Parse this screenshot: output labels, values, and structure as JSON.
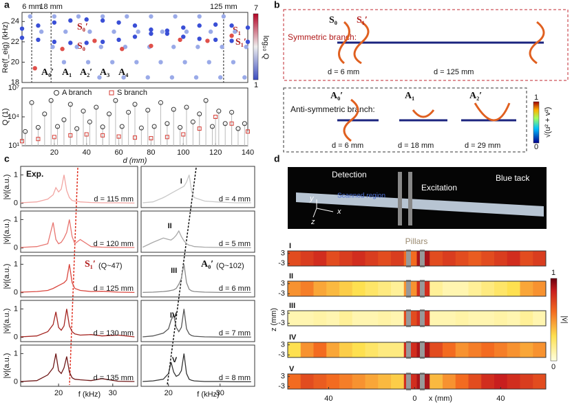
{
  "panel_labels": [
    "a",
    "b",
    "c",
    "d"
  ],
  "chart_data": [
    {
      "type": "scatter",
      "ylabel": "Re(f_eig) (kHz)",
      "xlim": [
        0,
        140
      ],
      "ylim": [
        18,
        24.9
      ],
      "yticks": [
        18,
        20,
        22,
        24
      ],
      "vlines": [
        {
          "value": 6,
          "label": "6 mm"
        },
        {
          "value": 18,
          "label": "18 mm"
        },
        {
          "value": 125,
          "label": "125 mm"
        }
      ],
      "colorbar": {
        "label": "log₁₀ Q",
        "ticks": [
          "1",
          "7"
        ]
      },
      "mode_labels": [
        "S₀′",
        "S₀",
        "S₁",
        "S₁′",
        "A₀′",
        "A₁",
        "A₂′",
        "A₃",
        "A₄"
      ],
      "series": [
        {
          "color": "#9aaae8",
          "x": [
            5,
            12,
            19,
            26,
            20,
            27,
            34,
            41,
            48,
            35,
            42,
            49,
            56,
            63,
            50,
            57,
            64,
            71,
            78,
            65,
            72,
            79,
            86,
            93,
            80,
            87,
            94,
            101,
            108,
            95,
            102,
            109,
            116,
            123,
            110,
            117,
            124,
            131,
            138,
            125,
            132,
            139
          ],
          "values": [
            24.5,
            23,
            21.5,
            20,
            24.5,
            23,
            21.5,
            20,
            18.5,
            24.5,
            23,
            21.5,
            20,
            18.5,
            24.5,
            23,
            21.5,
            20,
            18.5,
            24.5,
            23,
            21.5,
            20,
            18.5,
            24.5,
            23,
            21.5,
            20,
            18.5,
            24.5,
            23,
            21.5,
            20,
            18.5,
            24.5,
            23,
            21.5,
            20,
            18.5,
            24.5,
            23,
            21.5
          ]
        },
        {
          "color": "#3a4fd6",
          "x": [
            0,
            10,
            20,
            30,
            40,
            50,
            60,
            70,
            80,
            90,
            100,
            110,
            120,
            130,
            140
          ],
          "values": [
            23.3,
            23.6,
            23.9,
            24.1,
            24.2,
            24.1,
            23.9,
            23.6,
            23.2,
            22.8,
            22.5,
            22.3,
            22.2,
            22.1,
            22.0
          ]
        },
        {
          "color": "#3a4fd6",
          "x": [
            0,
            10,
            20,
            30,
            40,
            50,
            60,
            70,
            80,
            90,
            100,
            110,
            120,
            130,
            140
          ],
          "values": [
            22.4,
            22.2,
            22.0,
            21.9,
            21.9,
            22.0,
            22.2,
            22.5,
            22.8,
            23.1,
            23.4,
            23.6,
            23.7,
            23.6,
            23.4
          ]
        },
        {
          "color": "#e0504a",
          "x": [
            8,
            25,
            45,
            62,
            80,
            98,
            115,
            130
          ],
          "values": [
            19.4,
            21.3,
            22.1,
            21.3,
            21.6,
            22.2,
            22.1,
            22.6
          ]
        }
      ]
    },
    {
      "type": "scatter",
      "log_y": true,
      "ylabel": "Q (1)",
      "xlabel": "d (mm)",
      "xlim": [
        0,
        140
      ],
      "ylim": [
        10,
        10000000
      ],
      "yticks": [
        {
          "value": 10,
          "label": "10¹"
        },
        {
          "value": 10000,
          "label": "10⁴"
        },
        {
          "value": 10000000,
          "label": "10⁷"
        }
      ],
      "xticks": [
        20,
        40,
        60,
        80,
        100,
        120,
        140
      ],
      "series": [
        {
          "name": "A branch",
          "color": "#333333",
          "marker": "circle",
          "x": [
            2,
            6,
            10,
            14,
            18,
            22,
            26,
            30,
            34,
            38,
            42,
            46,
            50,
            54,
            58,
            62,
            66,
            70,
            74,
            78,
            82,
            86,
            90,
            94,
            98,
            102,
            106,
            110,
            114,
            118,
            122,
            126,
            130,
            134,
            138
          ],
          "values": [
            300,
            300000,
            800,
            20000,
            500000,
            1000,
            5000,
            200000,
            600,
            40000,
            3000,
            100000,
            900,
            20000,
            500000,
            1000,
            30000,
            200000,
            700,
            50000,
            1000,
            300000,
            2000,
            60000,
            800,
            100000,
            3000,
            20000,
            500000,
            1000,
            40000,
            2000,
            30000,
            600,
            2000
          ]
        },
        {
          "name": "S branch",
          "color": "#d43a32",
          "marker": "square",
          "x": [
            0,
            10,
            20,
            30,
            40,
            50,
            60,
            70,
            80,
            90,
            100,
            110,
            120,
            130,
            140
          ],
          "values": [
            30,
            50,
            80,
            120,
            150,
            120,
            90,
            70,
            60,
            80,
            150,
            600,
            10000,
            2000,
            300
          ]
        }
      ]
    },
    {
      "type": "line",
      "ylabel": "|v̇|(a.u.)",
      "d_label": "d = 115 mm",
      "color": "#f2a5a2",
      "xlim": [
        13,
        34.6
      ],
      "ylim": [
        -0.15,
        1.3
      ],
      "yticks": [
        0,
        1
      ],
      "x": [
        13,
        16,
        18,
        19,
        19.5,
        20,
        20.5,
        21,
        21.5,
        22,
        22.5,
        23,
        24,
        26,
        28,
        31,
        34
      ],
      "values": [
        0.02,
        0.05,
        0.15,
        0.3,
        0.55,
        0.4,
        0.5,
        1.0,
        0.45,
        0.2,
        0.1,
        0.08,
        0.05,
        0.03,
        0.02,
        0.02,
        0.01
      ]
    },
    {
      "type": "line",
      "ylabel": "|v̇|(a.u.)",
      "d_label": "d = 120 mm",
      "color": "#e87570",
      "xlim": [
        13,
        34.6
      ],
      "ylim": [
        -0.15,
        1.3
      ],
      "yticks": [
        0,
        1
      ],
      "x": [
        13,
        16,
        18,
        19,
        19.5,
        20,
        20.5,
        21,
        21.5,
        22,
        22.5,
        23,
        24,
        26,
        28,
        31,
        34
      ],
      "values": [
        0.02,
        0.05,
        0.15,
        0.9,
        0.3,
        0.15,
        0.2,
        0.35,
        0.55,
        1.0,
        0.4,
        0.15,
        0.3,
        0.05,
        0.03,
        0.02,
        0.02
      ]
    },
    {
      "type": "line",
      "ylabel": "|v̇|(a.u.)",
      "d_label": "d = 125 mm",
      "color": "#d9463e",
      "xlim": [
        13,
        34.6
      ],
      "ylim": [
        -0.15,
        1.3
      ],
      "yticks": [
        0,
        1
      ],
      "x": [
        13,
        16,
        18,
        19,
        19.5,
        20,
        20.5,
        21,
        21.5,
        22,
        22.5,
        23,
        24,
        26,
        28,
        31,
        34
      ],
      "values": [
        0.02,
        0.04,
        0.08,
        0.15,
        0.2,
        0.25,
        0.3,
        0.35,
        0.45,
        1.0,
        0.35,
        0.15,
        0.08,
        0.04,
        0.05,
        0.02,
        0.01
      ]
    },
    {
      "type": "line",
      "ylabel": "|v̇|(a.u.)",
      "d_label": "d = 130 mm",
      "color": "#a42420",
      "xlim": [
        13,
        34.6
      ],
      "ylim": [
        -0.15,
        1.3
      ],
      "yticks": [
        0,
        1
      ],
      "x": [
        13,
        16,
        18,
        19,
        19.5,
        20,
        20.5,
        21,
        21.5,
        22,
        22.5,
        23,
        24,
        26,
        28,
        31,
        34
      ],
      "values": [
        0.02,
        0.05,
        0.2,
        0.45,
        0.9,
        0.35,
        0.25,
        0.4,
        1.0,
        0.4,
        0.2,
        0.12,
        0.08,
        0.1,
        0.05,
        0.08,
        0.02
      ]
    },
    {
      "type": "line",
      "ylabel": "|v̇|(a.u.)",
      "d_label": "d = 135 mm",
      "color": "#6e1616",
      "xlim": [
        13,
        34.6
      ],
      "ylim": [
        -0.15,
        1.3
      ],
      "yticks": [
        0,
        1
      ],
      "xticks": [
        20,
        30
      ],
      "xlabel": "f (kHz)",
      "x": [
        13,
        16,
        18,
        19,
        19.5,
        20,
        20.5,
        21,
        21.5,
        22,
        22.5,
        23,
        24,
        26,
        28,
        31,
        34
      ],
      "values": [
        0.02,
        0.05,
        0.25,
        0.5,
        1.0,
        0.4,
        0.3,
        0.5,
        0.9,
        0.35,
        0.15,
        0.1,
        0.08,
        0.05,
        0.12,
        0.03,
        0.02
      ]
    },
    {
      "type": "line",
      "roman": "I",
      "d_label": "d = 4 mm",
      "color": "#c8c8c8",
      "xlim": [
        14.7,
        36.7
      ],
      "ylim": [
        -0.15,
        1.3
      ],
      "x": [
        15,
        17,
        19,
        20,
        20.5,
        21,
        21.5,
        22,
        22.5,
        23,
        23.5,
        24,
        24.5,
        25,
        27,
        30,
        33,
        36
      ],
      "values": [
        0.02,
        0.05,
        0.2,
        0.3,
        0.35,
        0.4,
        0.45,
        0.5,
        0.55,
        0.6,
        0.75,
        1.0,
        0.4,
        0.2,
        0.08,
        0.04,
        0.02,
        0.02
      ]
    },
    {
      "type": "line",
      "roman": "II",
      "d_label": "d = 5 mm",
      "color": "#a8a8a8",
      "xlim": [
        14.7,
        36.7
      ],
      "ylim": [
        -0.15,
        1.3
      ],
      "x": [
        15,
        17,
        19,
        20,
        20.5,
        21,
        21.5,
        22,
        22.5,
        23,
        23.5,
        24,
        24.5,
        25,
        27,
        30,
        33,
        36
      ],
      "values": [
        0.03,
        0.2,
        0.35,
        0.3,
        0.28,
        0.35,
        0.45,
        0.6,
        0.4,
        0.25,
        0.15,
        0.1,
        0.08,
        0.05,
        0.03,
        0.02,
        0.02,
        0.01
      ]
    },
    {
      "type": "line",
      "roman": "III",
      "d_label": "d = 6 mm",
      "color": "#8a8a8a",
      "xlim": [
        14.7,
        36.7
      ],
      "ylim": [
        -0.15,
        1.3
      ],
      "x": [
        15,
        17,
        19,
        20,
        20.5,
        21,
        21.5,
        22,
        22.5,
        23,
        23.5,
        24,
        24.5,
        25,
        27,
        30,
        33,
        36
      ],
      "values": [
        0.01,
        0.02,
        0.04,
        0.06,
        0.08,
        0.1,
        0.15,
        0.3,
        0.5,
        1.0,
        0.35,
        0.12,
        0.06,
        0.04,
        0.02,
        0.01,
        0.01,
        0.01
      ]
    },
    {
      "type": "line",
      "roman": "IV",
      "d_label": "d = 7 mm",
      "color": "#555555",
      "xlim": [
        14.7,
        36.7
      ],
      "ylim": [
        -0.15,
        1.3
      ],
      "x": [
        15,
        17,
        19,
        20,
        20.5,
        21,
        21.5,
        22,
        22.5,
        23,
        23.5,
        24,
        24.5,
        25,
        27,
        30,
        33,
        36
      ],
      "values": [
        0.02,
        0.05,
        0.15,
        0.3,
        0.6,
        0.8,
        0.35,
        0.2,
        0.35,
        1.0,
        0.3,
        0.12,
        0.06,
        0.04,
        0.02,
        0.01,
        0.01,
        0.01
      ]
    },
    {
      "type": "line",
      "roman": "V",
      "d_label": "d = 8 mm",
      "color": "#333333",
      "xlim": [
        14.7,
        36.7
      ],
      "ylim": [
        -0.15,
        1.3
      ],
      "xticks": [
        20,
        30
      ],
      "xlabel": "f (kHz)",
      "x": [
        15,
        17,
        19,
        20,
        20.5,
        21,
        21.5,
        22,
        22.5,
        23,
        23.5,
        24,
        24.5,
        25,
        27,
        30,
        33,
        36
      ],
      "values": [
        0.02,
        0.04,
        0.1,
        0.3,
        0.7,
        0.35,
        0.2,
        0.25,
        0.4,
        1.0,
        0.3,
        0.1,
        0.06,
        0.04,
        0.02,
        0.02,
        0.01,
        0.01
      ]
    },
    {
      "type": "heatmap",
      "ylabel": "z (mm)",
      "xlabel": "x (mm)",
      "xlim": [
        -59,
        61
      ],
      "ylim": [
        -4.5,
        4.5
      ],
      "yticks": [
        3,
        -3
      ],
      "xticks": [
        {
          "value": -40,
          "label": "40"
        },
        0,
        40
      ],
      "colorbar": {
        "label": "|v̇|",
        "ticks": [
          "1",
          "0"
        ]
      },
      "rows": [
        {
          "name": "I",
          "values": [
            0.7,
            0.75,
            0.8,
            0.7,
            0.75,
            0.8,
            0.75,
            0.7,
            0.75,
            0.6,
            0.9,
            0.7,
            0.75,
            0.7,
            0.65,
            0.7,
            0.75,
            0.8,
            0.7,
            0.75
          ]
        },
        {
          "name": "II",
          "values": [
            0.5,
            0.55,
            0.45,
            0.4,
            0.35,
            0.3,
            0.25,
            0.2,
            0.15,
            0.5,
            0.8,
            0.15,
            0.1,
            0.1,
            0.15,
            0.2,
            0.25,
            0.3,
            0.45,
            0.5
          ]
        },
        {
          "name": "III",
          "values": [
            0.1,
            0.1,
            0.12,
            0.1,
            0.15,
            0.1,
            0.1,
            0.12,
            0.1,
            0.7,
            0.8,
            0.1,
            0.1,
            0.12,
            0.1,
            0.1,
            0.12,
            0.1,
            0.15,
            0.1
          ]
        },
        {
          "name": "IV",
          "values": [
            0.3,
            0.5,
            0.6,
            0.45,
            0.35,
            0.3,
            0.25,
            0.2,
            0.2,
            0.8,
            0.9,
            0.7,
            0.6,
            0.5,
            0.55,
            0.6,
            0.55,
            0.5,
            0.45,
            0.5
          ]
        },
        {
          "name": "V",
          "values": [
            0.6,
            0.7,
            0.65,
            0.6,
            0.55,
            0.5,
            0.45,
            0.4,
            0.35,
            0.8,
            0.9,
            0.4,
            0.5,
            0.6,
            0.7,
            0.8,
            0.85,
            0.8,
            0.75,
            0.7
          ]
        }
      ]
    }
  ],
  "panel_b": {
    "symmetric": "Symmetric branch:",
    "s0": "S₀",
    "s1p": "S₁′",
    "d6": "d = 6 mm",
    "d125": "d = 125 mm",
    "antisymmetric": "Anti-symmetric branch:",
    "a0p": "A₀′",
    "a1": "A₁",
    "a2p": "A₂′",
    "d6b": "d = 6 mm",
    "d18": "d = 18 mm",
    "d29": "d = 29 mm",
    "colorbar_label": "√(u² + v²)",
    "colorbar_ticks": [
      "1",
      "0"
    ]
  },
  "panel_c": {
    "exp": "Exp.",
    "s1p": "S₁′",
    "s1q": "(Q~47)",
    "a0p": "A₀′",
    "a0q": "(Q~102)"
  },
  "panel_d": {
    "detection": "Detection",
    "excitation": "Excitation",
    "blue_tack": "Blue tack",
    "scanned": "Scanned region",
    "y": "y",
    "x": "x",
    "z": "z",
    "pillars": "Pillars"
  }
}
